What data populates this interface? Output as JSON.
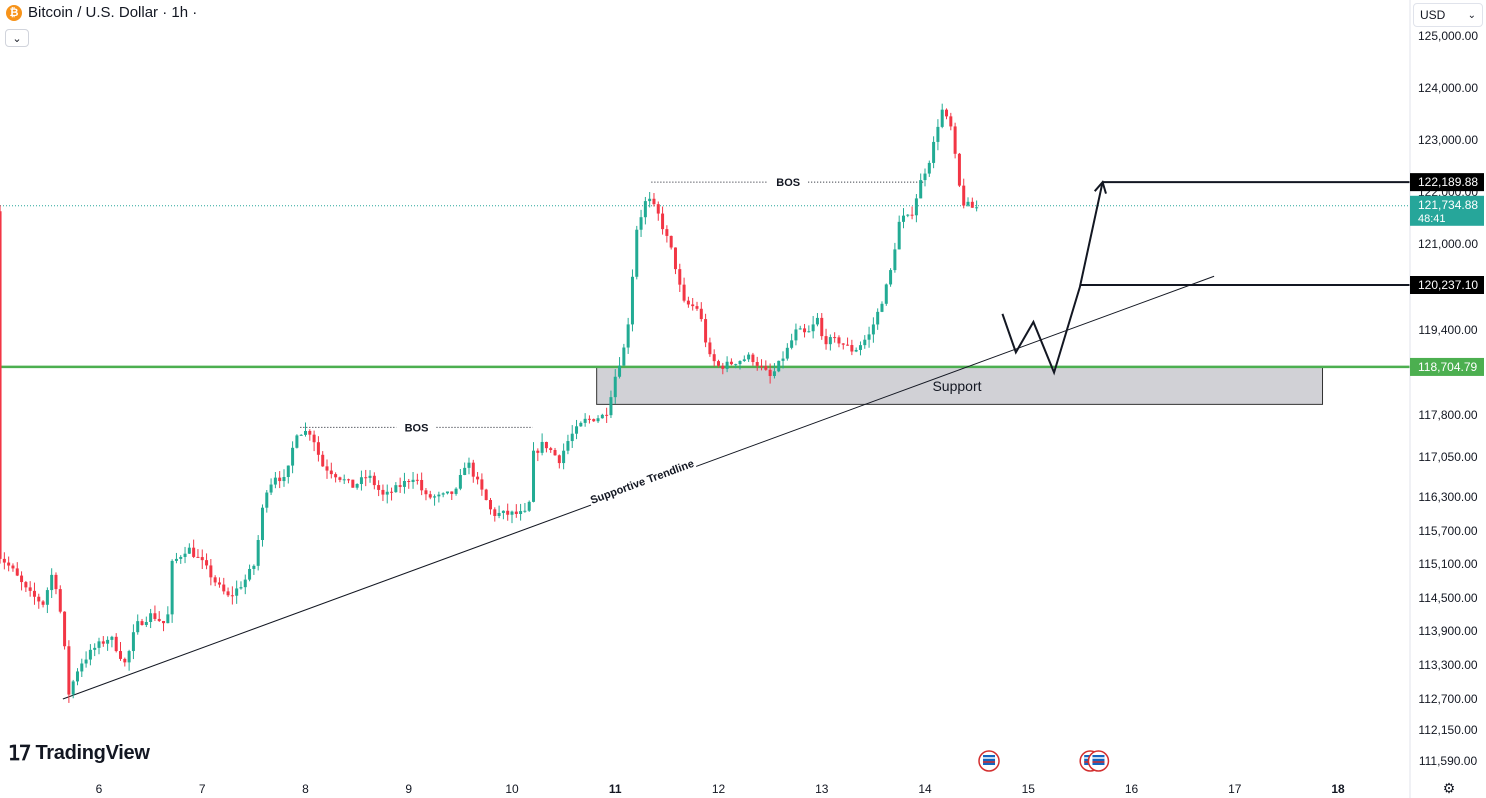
{
  "header": {
    "symbol_title": "Bitcoin / U.S. Dollar · 1h ·",
    "collapse_icon": "chevron-down-icon"
  },
  "currency_selector": {
    "value": "USD"
  },
  "brand": {
    "name": "TradingView"
  },
  "settings_icon": "gear-icon",
  "colors": {
    "up": "#22ab94",
    "down": "#f23645",
    "support_line": "#4caf50",
    "support_zone": "#d1d1d6",
    "last_price_bg": "#26a69a"
  },
  "chart_data": {
    "type": "candlestick",
    "title": "Bitcoin / U.S. Dollar · 1h",
    "ylim": [
      111400,
      125200
    ],
    "y_ticks": [
      125000,
      124000,
      123000,
      121000,
      119400,
      117800,
      117050,
      116300,
      115700,
      115100,
      114500,
      113900,
      113300,
      112700,
      112150,
      111590
    ],
    "y_tick_labels": [
      "125,000.00",
      "124,000.00",
      "123,000.00",
      "121,000.00",
      "119,400.00",
      "117,800.00",
      "117,050.00",
      "116,300.00",
      "115,700.00",
      "115,100.00",
      "114,500.00",
      "113,900.00",
      "113,300.00",
      "112,700.00",
      "112,150.00",
      "111,590.00"
    ],
    "x_ticks": [
      6,
      7,
      8,
      9,
      10,
      11,
      12,
      13,
      14,
      15,
      16,
      17,
      18
    ],
    "x_tick_labels": [
      "6",
      "7",
      "8",
      "9",
      "10",
      "11",
      "12",
      "13",
      "14",
      "15",
      "16",
      "17",
      "18"
    ],
    "x_bold_ticks": [
      "11",
      "18"
    ],
    "price_anchors": [
      [
        5.05,
        115300
      ],
      [
        5.2,
        115000
      ],
      [
        5.35,
        114600
      ],
      [
        5.5,
        114400
      ],
      [
        5.6,
        115000
      ],
      [
        5.68,
        114100
      ],
      [
        5.75,
        112800
      ],
      [
        5.85,
        113300
      ],
      [
        6.0,
        113600
      ],
      [
        6.15,
        113800
      ],
      [
        6.3,
        113300
      ],
      [
        6.4,
        114000
      ],
      [
        6.55,
        114200
      ],
      [
        6.7,
        114000
      ],
      [
        6.75,
        115100
      ],
      [
        6.9,
        115400
      ],
      [
        7.05,
        115100
      ],
      [
        7.2,
        114700
      ],
      [
        7.3,
        114500
      ],
      [
        7.45,
        114800
      ],
      [
        7.55,
        115100
      ],
      [
        7.65,
        116400
      ],
      [
        7.75,
        116700
      ],
      [
        7.85,
        116600
      ],
      [
        7.95,
        117500
      ],
      [
        8.1,
        117500
      ],
      [
        8.2,
        116900
      ],
      [
        8.35,
        116700
      ],
      [
        8.5,
        116500
      ],
      [
        8.65,
        116700
      ],
      [
        8.8,
        116300
      ],
      [
        8.95,
        116500
      ],
      [
        9.1,
        116700
      ],
      [
        9.2,
        116300
      ],
      [
        9.35,
        116300
      ],
      [
        9.5,
        116400
      ],
      [
        9.6,
        117000
      ],
      [
        9.7,
        116600
      ],
      [
        9.85,
        116000
      ],
      [
        10.0,
        116000
      ],
      [
        10.2,
        116000
      ],
      [
        10.25,
        117100
      ],
      [
        10.35,
        117300
      ],
      [
        10.5,
        117000
      ],
      [
        10.6,
        117400
      ],
      [
        10.75,
        117700
      ],
      [
        10.95,
        117800
      ],
      [
        11.05,
        118600
      ],
      [
        11.15,
        119200
      ],
      [
        11.25,
        121300
      ],
      [
        11.35,
        121900
      ],
      [
        11.45,
        121600
      ],
      [
        11.6,
        120800
      ],
      [
        11.7,
        119900
      ],
      [
        11.85,
        119800
      ],
      [
        11.95,
        118900
      ],
      [
        12.05,
        118700
      ],
      [
        12.2,
        118800
      ],
      [
        12.35,
        118900
      ],
      [
        12.45,
        118700
      ],
      [
        12.55,
        118500
      ],
      [
        12.7,
        119000
      ],
      [
        12.8,
        119400
      ],
      [
        12.9,
        119300
      ],
      [
        13.0,
        119600
      ],
      [
        13.05,
        119200
      ],
      [
        13.2,
        119200
      ],
      [
        13.35,
        119000
      ],
      [
        13.5,
        119300
      ],
      [
        13.6,
        119800
      ],
      [
        13.7,
        120400
      ],
      [
        13.8,
        121500
      ],
      [
        13.9,
        121500
      ],
      [
        14.0,
        122200
      ],
      [
        14.1,
        122700
      ],
      [
        14.2,
        123600
      ],
      [
        14.3,
        123200
      ],
      [
        14.35,
        122400
      ],
      [
        14.4,
        121800
      ],
      [
        14.5,
        121700
      ]
    ],
    "annotations": {
      "support_level": {
        "price": 118704.79,
        "label": "118,704.79"
      },
      "support_zone": {
        "label": "Support",
        "x_start": 10.82,
        "x_end": 17.85,
        "top": 118700,
        "bottom": 118000
      },
      "trendline": {
        "label": "Supportive Trendline",
        "from": [
          5.65,
          112700
        ],
        "to": [
          16.8,
          120400
        ]
      },
      "bos_lines": [
        {
          "label": "BOS",
          "x_start": 7.95,
          "x_end": 10.2,
          "price": 117580
        },
        {
          "label": "BOS",
          "x_start": 11.35,
          "x_end": 14.0,
          "price": 122190
        }
      ],
      "projected_path": [
        [
          14.75,
          119700
        ],
        [
          14.88,
          118980
        ],
        [
          15.05,
          119550
        ],
        [
          15.25,
          118600
        ],
        [
          15.5,
          120200
        ],
        [
          15.72,
          122190
        ]
      ],
      "target_levels": [
        {
          "price": 122189.88,
          "label": "122,189.88",
          "x_start": 15.72
        },
        {
          "price": 120237.1,
          "label": "120,237.10",
          "x_start": 15.5
        }
      ],
      "last_price": {
        "price": 121734.88,
        "label": "121,734.88",
        "countdown": "48:41"
      },
      "partial_tick_label": "122,000.00",
      "event_flags": [
        14.62,
        15.6,
        15.68
      ]
    }
  }
}
